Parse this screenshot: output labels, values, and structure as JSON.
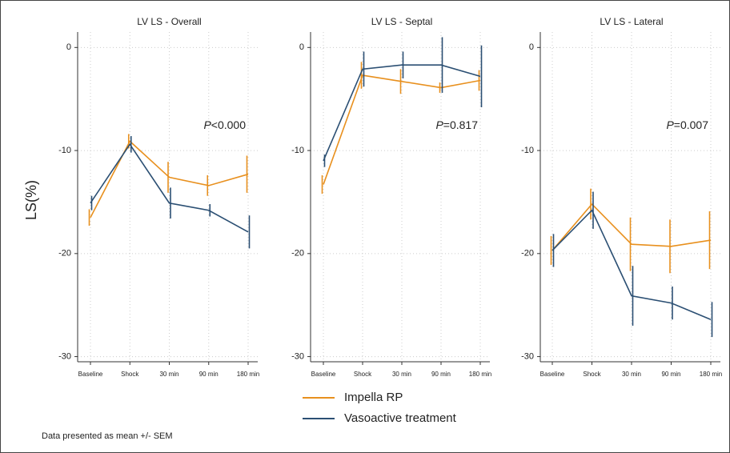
{
  "chart_data": [
    {
      "type": "line",
      "title": "LV LS - Overall",
      "ylabel": "LS(%)",
      "categories": [
        "Baseline",
        "Shock",
        "30 min",
        "90 min",
        "180 min"
      ],
      "series": [
        {
          "name": "Impella RP",
          "color": "#e8901e",
          "values": [
            -16.5,
            -9.1,
            -12.6,
            -13.4,
            -12.3
          ],
          "errors": [
            0.8,
            0.7,
            1.5,
            1.0,
            1.8
          ]
        },
        {
          "name": "Vasoactive treatment",
          "color": "#2b4f73",
          "values": [
            -15.1,
            -9.4,
            -15.1,
            -15.8,
            -17.9
          ],
          "errors": [
            0.7,
            0.8,
            1.5,
            0.6,
            1.6
          ]
        }
      ],
      "ylim": [
        -30.5,
        1.5
      ],
      "yticks": [
        0,
        -10,
        -20,
        -30
      ],
      "grid": true,
      "annotation": [
        "P",
        "<0.000"
      ]
    },
    {
      "type": "line",
      "title": "LV LS - Septal",
      "categories": [
        "Baseline",
        "Shock",
        "30 min",
        "90 min",
        "180 min"
      ],
      "series": [
        {
          "name": "Impella RP",
          "color": "#e8901e",
          "values": [
            -13.3,
            -2.7,
            -3.3,
            -3.9,
            -3.2
          ],
          "errors": [
            0.9,
            1.3,
            1.2,
            0.5,
            1.0
          ]
        },
        {
          "name": "Vasoactive treatment",
          "color": "#2b4f73",
          "values": [
            -11.0,
            -2.1,
            -1.7,
            -1.7,
            -2.8
          ],
          "errors": [
            0.6,
            1.7,
            1.3,
            2.7,
            3.0
          ]
        }
      ],
      "ylim": [
        -30.5,
        1.5
      ],
      "yticks": [
        0,
        -10,
        -20,
        -30
      ],
      "grid": true,
      "annotation": [
        "P",
        "=0.817"
      ]
    },
    {
      "type": "line",
      "title": "LV LS - Lateral",
      "categories": [
        "Baseline",
        "Shock",
        "30 min",
        "90 min",
        "180 min"
      ],
      "series": [
        {
          "name": "Impella RP",
          "color": "#e8901e",
          "values": [
            -19.7,
            -15.2,
            -19.1,
            -19.3,
            -18.7
          ],
          "errors": [
            1.4,
            1.5,
            2.6,
            2.6,
            2.8
          ]
        },
        {
          "name": "Vasoactive treatment",
          "color": "#2b4f73",
          "values": [
            -19.7,
            -15.8,
            -24.1,
            -24.8,
            -26.4
          ],
          "errors": [
            1.6,
            1.8,
            2.9,
            1.6,
            1.7
          ]
        }
      ],
      "ylim": [
        -30.5,
        1.5
      ],
      "yticks": [
        0,
        -10,
        -20,
        -30
      ],
      "grid": true,
      "annotation": [
        "P",
        "=0.007"
      ]
    }
  ],
  "footnote": "Data presented as mean +/- SEM"
}
